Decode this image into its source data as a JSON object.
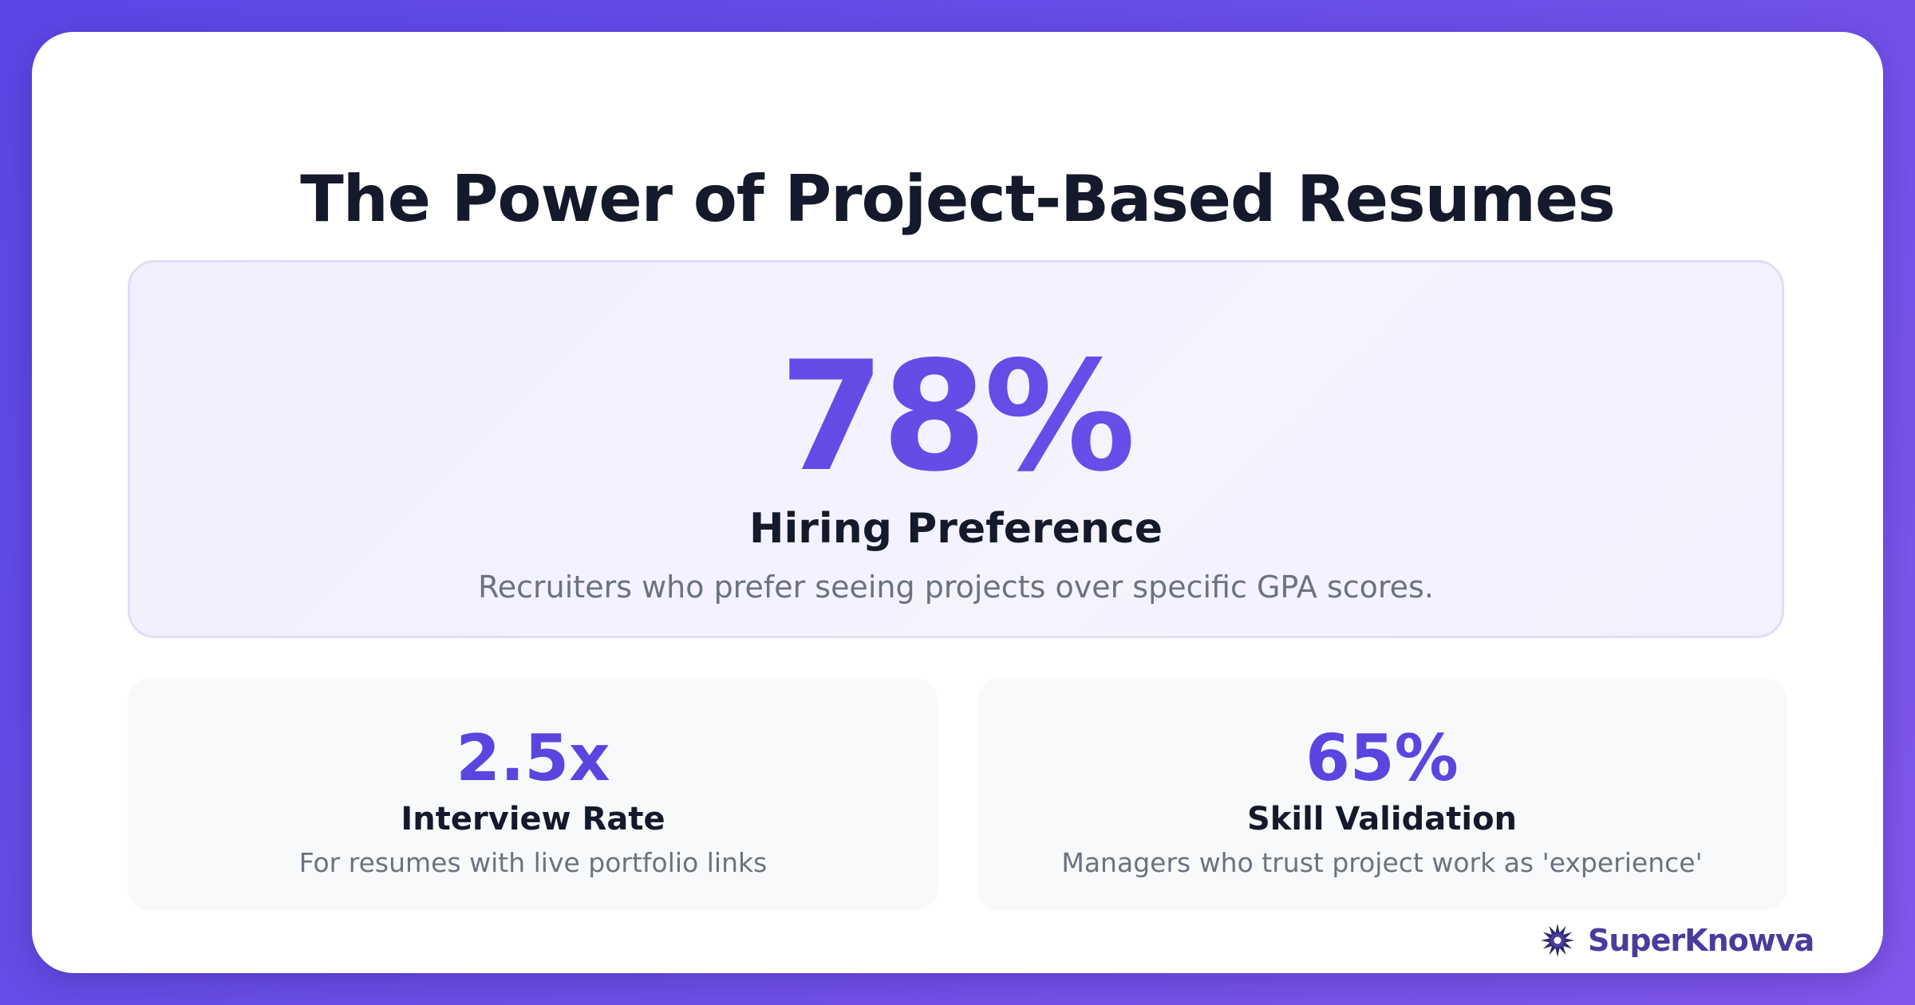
{
  "title": "The Power of Project-Based Resumes",
  "hero": {
    "value": "78%",
    "label": "Hiring Preference",
    "description": "Recruiters who prefer seeing projects over specific GPA scores."
  },
  "stats": [
    {
      "value": "2.5x",
      "label": "Interview Rate",
      "description": "For resumes with live portfolio links"
    },
    {
      "value": "65%",
      "label": "Skill Validation",
      "description": "Managers who trust project work as 'experience'"
    }
  ],
  "brand": {
    "name": "SuperKnowva",
    "icon": "starburst-logo-icon"
  },
  "colors": {
    "accent": "#5a45e0",
    "background_gradient_start": "#5b46e6",
    "background_gradient_end": "#8157ec",
    "heading": "#141a2b",
    "muted_text": "#6b7280"
  }
}
